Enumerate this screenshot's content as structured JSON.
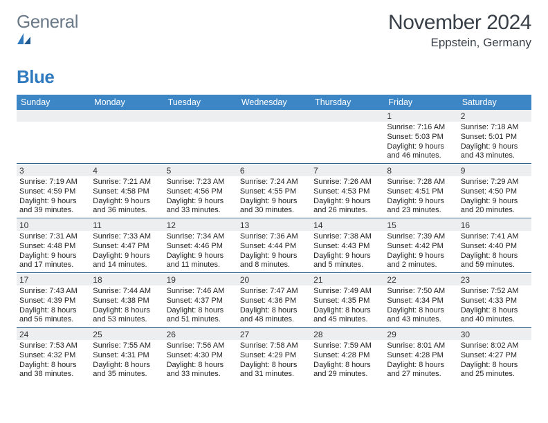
{
  "logo": {
    "word1": "General",
    "word2": "Blue",
    "mark_color": "#2f7abf"
  },
  "title": "November 2024",
  "location": "Eppstein, Germany",
  "colors": {
    "header_bar": "#3d86c6",
    "daynum_bg": "#eceef0",
    "week_sep": "#2f5f87",
    "text": "#222222",
    "logo_gray": "#6b7a88"
  },
  "days_of_week": [
    "Sunday",
    "Monday",
    "Tuesday",
    "Wednesday",
    "Thursday",
    "Friday",
    "Saturday"
  ],
  "weeks": [
    [
      {
        "n": "",
        "sunrise": "",
        "sunset": "",
        "day": ""
      },
      {
        "n": "",
        "sunrise": "",
        "sunset": "",
        "day": ""
      },
      {
        "n": "",
        "sunrise": "",
        "sunset": "",
        "day": ""
      },
      {
        "n": "",
        "sunrise": "",
        "sunset": "",
        "day": ""
      },
      {
        "n": "",
        "sunrise": "",
        "sunset": "",
        "day": ""
      },
      {
        "n": "1",
        "sunrise": "Sunrise: 7:16 AM",
        "sunset": "Sunset: 5:03 PM",
        "day": "Daylight: 9 hours and 46 minutes."
      },
      {
        "n": "2",
        "sunrise": "Sunrise: 7:18 AM",
        "sunset": "Sunset: 5:01 PM",
        "day": "Daylight: 9 hours and 43 minutes."
      }
    ],
    [
      {
        "n": "3",
        "sunrise": "Sunrise: 7:19 AM",
        "sunset": "Sunset: 4:59 PM",
        "day": "Daylight: 9 hours and 39 minutes."
      },
      {
        "n": "4",
        "sunrise": "Sunrise: 7:21 AM",
        "sunset": "Sunset: 4:58 PM",
        "day": "Daylight: 9 hours and 36 minutes."
      },
      {
        "n": "5",
        "sunrise": "Sunrise: 7:23 AM",
        "sunset": "Sunset: 4:56 PM",
        "day": "Daylight: 9 hours and 33 minutes."
      },
      {
        "n": "6",
        "sunrise": "Sunrise: 7:24 AM",
        "sunset": "Sunset: 4:55 PM",
        "day": "Daylight: 9 hours and 30 minutes."
      },
      {
        "n": "7",
        "sunrise": "Sunrise: 7:26 AM",
        "sunset": "Sunset: 4:53 PM",
        "day": "Daylight: 9 hours and 26 minutes."
      },
      {
        "n": "8",
        "sunrise": "Sunrise: 7:28 AM",
        "sunset": "Sunset: 4:51 PM",
        "day": "Daylight: 9 hours and 23 minutes."
      },
      {
        "n": "9",
        "sunrise": "Sunrise: 7:29 AM",
        "sunset": "Sunset: 4:50 PM",
        "day": "Daylight: 9 hours and 20 minutes."
      }
    ],
    [
      {
        "n": "10",
        "sunrise": "Sunrise: 7:31 AM",
        "sunset": "Sunset: 4:48 PM",
        "day": "Daylight: 9 hours and 17 minutes."
      },
      {
        "n": "11",
        "sunrise": "Sunrise: 7:33 AM",
        "sunset": "Sunset: 4:47 PM",
        "day": "Daylight: 9 hours and 14 minutes."
      },
      {
        "n": "12",
        "sunrise": "Sunrise: 7:34 AM",
        "sunset": "Sunset: 4:46 PM",
        "day": "Daylight: 9 hours and 11 minutes."
      },
      {
        "n": "13",
        "sunrise": "Sunrise: 7:36 AM",
        "sunset": "Sunset: 4:44 PM",
        "day": "Daylight: 9 hours and 8 minutes."
      },
      {
        "n": "14",
        "sunrise": "Sunrise: 7:38 AM",
        "sunset": "Sunset: 4:43 PM",
        "day": "Daylight: 9 hours and 5 minutes."
      },
      {
        "n": "15",
        "sunrise": "Sunrise: 7:39 AM",
        "sunset": "Sunset: 4:42 PM",
        "day": "Daylight: 9 hours and 2 minutes."
      },
      {
        "n": "16",
        "sunrise": "Sunrise: 7:41 AM",
        "sunset": "Sunset: 4:40 PM",
        "day": "Daylight: 8 hours and 59 minutes."
      }
    ],
    [
      {
        "n": "17",
        "sunrise": "Sunrise: 7:43 AM",
        "sunset": "Sunset: 4:39 PM",
        "day": "Daylight: 8 hours and 56 minutes."
      },
      {
        "n": "18",
        "sunrise": "Sunrise: 7:44 AM",
        "sunset": "Sunset: 4:38 PM",
        "day": "Daylight: 8 hours and 53 minutes."
      },
      {
        "n": "19",
        "sunrise": "Sunrise: 7:46 AM",
        "sunset": "Sunset: 4:37 PM",
        "day": "Daylight: 8 hours and 51 minutes."
      },
      {
        "n": "20",
        "sunrise": "Sunrise: 7:47 AM",
        "sunset": "Sunset: 4:36 PM",
        "day": "Daylight: 8 hours and 48 minutes."
      },
      {
        "n": "21",
        "sunrise": "Sunrise: 7:49 AM",
        "sunset": "Sunset: 4:35 PM",
        "day": "Daylight: 8 hours and 45 minutes."
      },
      {
        "n": "22",
        "sunrise": "Sunrise: 7:50 AM",
        "sunset": "Sunset: 4:34 PM",
        "day": "Daylight: 8 hours and 43 minutes."
      },
      {
        "n": "23",
        "sunrise": "Sunrise: 7:52 AM",
        "sunset": "Sunset: 4:33 PM",
        "day": "Daylight: 8 hours and 40 minutes."
      }
    ],
    [
      {
        "n": "24",
        "sunrise": "Sunrise: 7:53 AM",
        "sunset": "Sunset: 4:32 PM",
        "day": "Daylight: 8 hours and 38 minutes."
      },
      {
        "n": "25",
        "sunrise": "Sunrise: 7:55 AM",
        "sunset": "Sunset: 4:31 PM",
        "day": "Daylight: 8 hours and 35 minutes."
      },
      {
        "n": "26",
        "sunrise": "Sunrise: 7:56 AM",
        "sunset": "Sunset: 4:30 PM",
        "day": "Daylight: 8 hours and 33 minutes."
      },
      {
        "n": "27",
        "sunrise": "Sunrise: 7:58 AM",
        "sunset": "Sunset: 4:29 PM",
        "day": "Daylight: 8 hours and 31 minutes."
      },
      {
        "n": "28",
        "sunrise": "Sunrise: 7:59 AM",
        "sunset": "Sunset: 4:28 PM",
        "day": "Daylight: 8 hours and 29 minutes."
      },
      {
        "n": "29",
        "sunrise": "Sunrise: 8:01 AM",
        "sunset": "Sunset: 4:28 PM",
        "day": "Daylight: 8 hours and 27 minutes."
      },
      {
        "n": "30",
        "sunrise": "Sunrise: 8:02 AM",
        "sunset": "Sunset: 4:27 PM",
        "day": "Daylight: 8 hours and 25 minutes."
      }
    ]
  ]
}
